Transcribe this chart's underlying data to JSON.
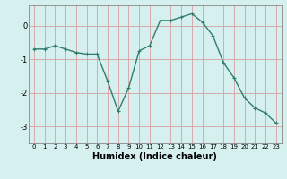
{
  "x": [
    0,
    1,
    2,
    3,
    4,
    5,
    6,
    7,
    8,
    9,
    10,
    11,
    12,
    13,
    14,
    15,
    16,
    17,
    18,
    19,
    20,
    21,
    22,
    23
  ],
  "y": [
    -0.7,
    -0.7,
    -0.6,
    -0.7,
    -0.8,
    -0.85,
    -0.85,
    -1.65,
    -2.55,
    -1.85,
    -0.75,
    -0.6,
    0.15,
    0.15,
    0.25,
    0.35,
    0.1,
    -0.3,
    -1.1,
    -1.55,
    -2.15,
    -2.45,
    -2.6,
    -2.9
  ],
  "line_color": "#2e7d6e",
  "marker": "+",
  "markersize": 3,
  "linewidth": 1.0,
  "xlabel": "Humidex (Indice chaleur)",
  "xlabel_fontsize": 7,
  "bg_color": "#d6f0ef",
  "grid_color": "#d4a0a0",
  "tick_color": "#000000",
  "ylim": [
    -3.5,
    0.6
  ],
  "xlim": [
    -0.5,
    23.5
  ],
  "yticks": [
    -3,
    -2,
    -1,
    0
  ],
  "xticks": [
    0,
    1,
    2,
    3,
    4,
    5,
    6,
    7,
    8,
    9,
    10,
    11,
    12,
    13,
    14,
    15,
    16,
    17,
    18,
    19,
    20,
    21,
    22,
    23
  ],
  "tick_fontsize": 5,
  "spine_color": "#888888"
}
